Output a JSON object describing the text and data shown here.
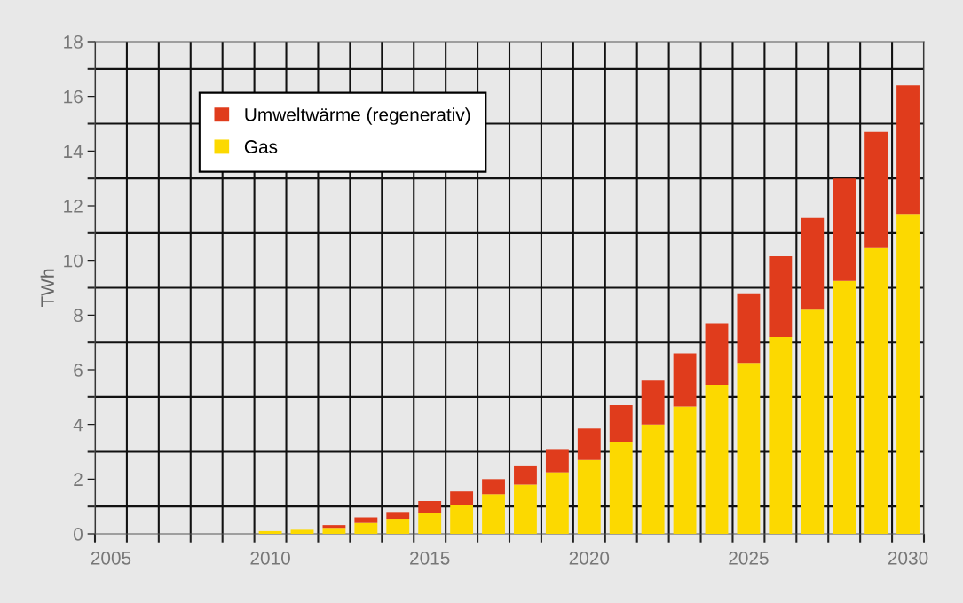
{
  "chart_data": {
    "type": "bar",
    "stacked": true,
    "ylabel": "TWh",
    "x": [
      2010,
      2011,
      2012,
      2013,
      2014,
      2015,
      2016,
      2017,
      2018,
      2019,
      2020,
      2021,
      2022,
      2023,
      2024,
      2025,
      2026,
      2027,
      2028,
      2029,
      2030
    ],
    "series": [
      {
        "name": "Gas",
        "color": "#fcd900",
        "values": [
          0.1,
          0.15,
          0.22,
          0.4,
          0.55,
          0.75,
          1.05,
          1.45,
          1.8,
          2.25,
          2.7,
          3.35,
          4.0,
          4.65,
          5.45,
          6.25,
          7.2,
          8.2,
          9.25,
          10.45,
          11.7
        ]
      },
      {
        "name": "Umweltwärme (regenerativ)",
        "color": "#e03c1c",
        "values": [
          0,
          0,
          0.1,
          0.2,
          0.25,
          0.45,
          0.5,
          0.55,
          0.7,
          0.85,
          1.15,
          1.35,
          1.6,
          1.95,
          2.25,
          2.55,
          2.95,
          3.35,
          3.75,
          4.25,
          4.7
        ]
      }
    ],
    "xlim": [
      2004.5,
      2030.5
    ],
    "xticks": [
      2005,
      2010,
      2015,
      2020,
      2025,
      2030
    ],
    "ylim": [
      0,
      18
    ],
    "yticks": [
      0,
      2,
      4,
      6,
      8,
      10,
      12,
      14,
      16,
      18
    ],
    "grid": true,
    "legend": "top left"
  }
}
